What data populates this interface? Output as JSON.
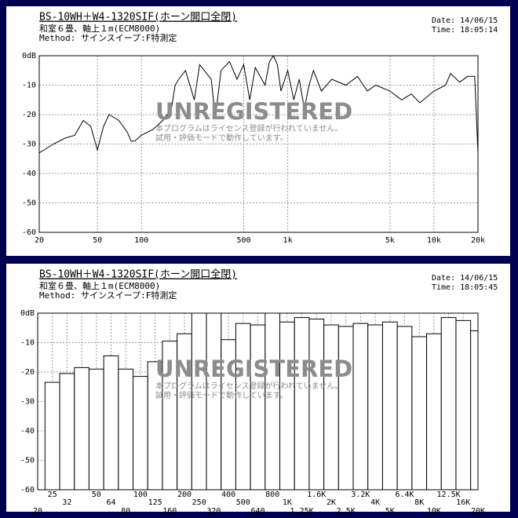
{
  "chart_data": [
    {
      "type": "line",
      "title": "BS-10WH＋W4-1320SIF(ホーン開口全閉)",
      "subtitle": "和室６畳、軸上１m(ECM8000)",
      "method": "Method: サインスイープ:F特測定",
      "date": "Date: 14/06/15",
      "time": "Time: 18:05:14",
      "watermark": [
        "UNREGISTERED",
        "本プログラムはライセンス登録が行われていません。",
        "試用・評価モードで動作しています。"
      ],
      "x": [
        20,
        25,
        30,
        35,
        40,
        45,
        50,
        55,
        60,
        70,
        80,
        85,
        90,
        100,
        120,
        140,
        160,
        170,
        180,
        200,
        230,
        250,
        300,
        320,
        350,
        400,
        450,
        500,
        550,
        600,
        700,
        750,
        800,
        850,
        900,
        1000,
        1100,
        1200,
        1300,
        1400,
        1500,
        1700,
        2000,
        2500,
        3000,
        3500,
        4000,
        5000,
        6000,
        7000,
        8000,
        10000,
        12000,
        13000,
        15000,
        17000,
        19000,
        20000
      ],
      "values": [
        -33,
        -30,
        -28,
        -27,
        -22,
        -24,
        -32,
        -24,
        -20,
        -22,
        -26,
        -29,
        -29,
        -27,
        -25,
        -22,
        -18,
        -10,
        -8,
        -5,
        -15,
        -3,
        -8,
        -21,
        -5,
        -2,
        -8,
        -3,
        -15,
        -4,
        -10,
        -2,
        0,
        -3,
        -12,
        -5,
        -15,
        -8,
        -18,
        -10,
        -5,
        -12,
        -8,
        -10,
        -7,
        -12,
        -10,
        -12,
        -15,
        -13,
        -16,
        -12,
        -10,
        -6,
        -9,
        -7,
        -7,
        -33
      ],
      "color": "#000000",
      "log_x": true,
      "xlim": [
        20,
        20000
      ],
      "xticks": [
        20,
        50,
        100,
        500,
        {
          "value": 1000,
          "label": "1k"
        },
        {
          "value": 5000,
          "label": "5k"
        },
        {
          "value": 10000,
          "label": "10k"
        },
        {
          "value": 20000,
          "label": "20k"
        }
      ],
      "ylim": [
        -60,
        0
      ],
      "yticks": [
        {
          "value": 0,
          "label": "0dB"
        },
        -10,
        -20,
        -30,
        -40,
        -50,
        -60
      ],
      "grid": true
    },
    {
      "type": "bar",
      "title": "BS-10WH＋W4-1320SIF(ホーン開口全閉)",
      "subtitle": "和室６畳、軸上１m(ECM8000)",
      "method": "Method: サインスイープ:F特測定",
      "date": "Date: 14/06/15",
      "time": "Time: 18:05:45",
      "watermark": [
        "UNREGISTERED",
        "本プログラムはライセンス登録が行われていません。",
        "試用・評価モードで動作しています。"
      ],
      "categories": [
        "20",
        "25",
        "32",
        null,
        "50",
        "64",
        "80",
        "100",
        "125",
        "160",
        "200",
        "250",
        "320",
        "400",
        "500",
        "640",
        "800",
        "1K",
        "1.25K",
        "1.6K",
        "2K",
        "2.5K",
        "3.2K",
        "4K",
        "5K",
        "6.4K",
        "8K",
        "10K",
        "12.5K",
        "16K",
        "20K"
      ],
      "values": [
        null,
        -23.5,
        -20.5,
        -18.5,
        -19,
        -14.5,
        -19,
        -21.5,
        -16.5,
        -9.5,
        -7,
        0,
        0,
        -9,
        -3.5,
        -4,
        0,
        -3,
        -1.5,
        -2,
        -4,
        -4.5,
        -3.5,
        -4,
        -3,
        -4.5,
        -8,
        -7,
        -1.5,
        -2.5,
        -6
      ],
      "color": "#ffffff",
      "ylim": [
        -60,
        0
      ],
      "yticks": [
        {
          "value": 0,
          "label": "0dB"
        },
        -10,
        -20,
        -30,
        -40,
        -50,
        -60
      ],
      "grid": true
    }
  ]
}
